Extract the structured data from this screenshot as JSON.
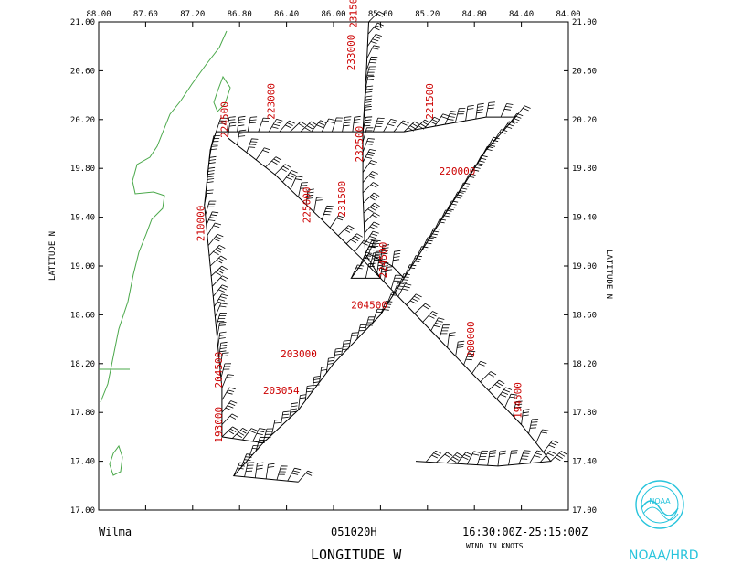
{
  "map": {
    "lon_ticks": [
      "88.00",
      "87.60",
      "87.20",
      "86.80",
      "86.40",
      "86.00",
      "85.60",
      "85.20",
      "84.80",
      "84.40",
      "84.00"
    ],
    "lat_ticks": [
      "17.00",
      "17.40",
      "17.80",
      "18.20",
      "18.60",
      "19.00",
      "19.40",
      "19.80",
      "20.20",
      "20.60",
      "21.00"
    ],
    "lon_range": [
      -88.0,
      -84.0
    ],
    "lat_range": [
      17.0,
      21.0
    ],
    "lat_axis_label": "LATITUDE   N",
    "lon_axis_label": "LONGITUDE   W",
    "coast_color": "#4aa84a",
    "track_color": "#000000",
    "label_color": "#cc0000"
  },
  "track_points": [
    {
      "lon": -86.3,
      "lat": 17.23
    },
    {
      "lon": -86.85,
      "lat": 17.28
    },
    {
      "lon": -86.6,
      "lat": 17.55
    },
    {
      "lon": -86.3,
      "lat": 17.82
    },
    {
      "lon": -86.0,
      "lat": 18.2
    },
    {
      "lon": -85.6,
      "lat": 18.6
    },
    {
      "lon": -85.3,
      "lat": 19.05
    },
    {
      "lon": -85.0,
      "lat": 19.5
    },
    {
      "lon": -84.7,
      "lat": 19.95
    },
    {
      "lon": -84.45,
      "lat": 20.22
    },
    {
      "lon": -84.7,
      "lat": 20.22
    },
    {
      "lon": -85.4,
      "lat": 20.1
    },
    {
      "lon": -86.1,
      "lat": 20.1
    },
    {
      "lon": -87.0,
      "lat": 20.1
    },
    {
      "lon": -87.05,
      "lat": 19.95
    },
    {
      "lon": -87.1,
      "lat": 19.5
    },
    {
      "lon": -87.05,
      "lat": 19.0
    },
    {
      "lon": -87.0,
      "lat": 18.5
    },
    {
      "lon": -86.95,
      "lat": 18.0
    },
    {
      "lon": -86.95,
      "lat": 17.6
    },
    {
      "lon": -86.6,
      "lat": 17.55
    }
  ],
  "track_points_b": [
    {
      "lon": -86.9,
      "lat": 20.05
    },
    {
      "lon": -86.5,
      "lat": 19.75
    },
    {
      "lon": -86.1,
      "lat": 19.38
    },
    {
      "lon": -85.75,
      "lat": 19.05
    },
    {
      "lon": -85.45,
      "lat": 18.75
    },
    {
      "lon": -85.1,
      "lat": 18.4
    },
    {
      "lon": -84.75,
      "lat": 18.05
    },
    {
      "lon": -84.4,
      "lat": 17.7
    },
    {
      "lon": -84.15,
      "lat": 17.4
    },
    {
      "lon": -84.6,
      "lat": 17.36
    },
    {
      "lon": -85.3,
      "lat": 17.4
    }
  ],
  "track_points_c": [
    {
      "lon": -85.7,
      "lat": 21.0
    },
    {
      "lon": -85.72,
      "lat": 20.6
    },
    {
      "lon": -85.75,
      "lat": 20.1
    },
    {
      "lon": -85.75,
      "lat": 19.6
    },
    {
      "lon": -85.73,
      "lat": 19.1
    },
    {
      "lon": -85.6,
      "lat": 18.9
    },
    {
      "lon": -85.85,
      "lat": 18.9
    },
    {
      "lon": -85.7,
      "lat": 19.1
    },
    {
      "lon": -85.5,
      "lat": 19.0
    },
    {
      "lon": -85.4,
      "lat": 18.9
    }
  ],
  "time_labels": [
    {
      "text": "221500",
      "lon": -85.15,
      "lat": 20.2,
      "rot": -90
    },
    {
      "text": "223000",
      "lon": -86.5,
      "lat": 20.2,
      "rot": -90
    },
    {
      "text": "220000",
      "lon": -85.1,
      "lat": 19.75,
      "rot": 0
    },
    {
      "text": "231500",
      "lon": -85.8,
      "lat": 20.95,
      "rot": -90
    },
    {
      "text": "233000",
      "lon": -85.82,
      "lat": 20.6,
      "rot": -90
    },
    {
      "text": "224500",
      "lon": -86.9,
      "lat": 20.05,
      "rot": -90
    },
    {
      "text": "231500",
      "lon": -85.9,
      "lat": 19.4,
      "rot": -90
    },
    {
      "text": "232500",
      "lon": -85.75,
      "lat": 19.85,
      "rot": -90
    },
    {
      "text": "225000",
      "lon": -86.2,
      "lat": 19.35,
      "rot": -90
    },
    {
      "text": "210000",
      "lon": -87.1,
      "lat": 19.2,
      "rot": -90
    },
    {
      "text": "224500",
      "lon": -85.55,
      "lat": 18.9,
      "rot": -90
    },
    {
      "text": "204500",
      "lon": -85.85,
      "lat": 18.65,
      "rot": 0
    },
    {
      "text": "203000",
      "lon": -86.45,
      "lat": 18.25,
      "rot": 0
    },
    {
      "text": "200000",
      "lon": -84.8,
      "lat": 18.25,
      "rot": -90
    },
    {
      "text": "203054",
      "lon": -86.6,
      "lat": 17.95,
      "rot": 0
    },
    {
      "text": "204500",
      "lon": -86.95,
      "lat": 18.0,
      "rot": -90
    },
    {
      "text": "194500",
      "lon": -84.4,
      "lat": 17.75,
      "rot": -90
    },
    {
      "text": "193000",
      "lon": -86.95,
      "lat": 17.55,
      "rot": -90
    }
  ],
  "footer": {
    "storm_name": "Wilma",
    "date_code": "051020H",
    "time_range": "16:30:00Z-25:15:00Z",
    "wind_units": "WIND IN KNOTS",
    "agency": "NOAA/HRD",
    "logo_text": "NOAA"
  }
}
